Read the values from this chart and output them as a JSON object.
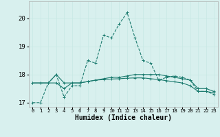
{
  "title": "",
  "xlabel": "Humidex (Indice chaleur)",
  "ylabel": "",
  "bg_color": "#d8f0ee",
  "grid_color": "#c8e8e4",
  "line_color": "#1a7a6e",
  "xlim": [
    -0.5,
    23.5
  ],
  "ylim": [
    16.85,
    20.6
  ],
  "yticks": [
    17,
    18,
    19,
    20
  ],
  "xticks": [
    0,
    1,
    2,
    3,
    4,
    5,
    6,
    7,
    8,
    9,
    10,
    11,
    12,
    13,
    14,
    15,
    16,
    17,
    18,
    19,
    20,
    21,
    22,
    23
  ],
  "series": [
    [
      17.0,
      17.0,
      17.7,
      18.0,
      17.2,
      17.6,
      17.6,
      18.5,
      18.4,
      19.4,
      19.3,
      19.8,
      20.2,
      19.3,
      18.5,
      18.4,
      17.8,
      17.9,
      17.95,
      17.9,
      17.8,
      17.4,
      17.4,
      17.3
    ],
    [
      17.7,
      17.7,
      17.7,
      18.0,
      17.7,
      17.7,
      17.7,
      17.75,
      17.8,
      17.85,
      17.9,
      17.9,
      17.95,
      18.0,
      18.0,
      18.0,
      18.0,
      17.95,
      17.9,
      17.85,
      17.8,
      17.5,
      17.5,
      17.4
    ],
    [
      17.7,
      17.7,
      17.7,
      17.7,
      17.5,
      17.7,
      17.7,
      17.75,
      17.8,
      17.82,
      17.84,
      17.85,
      17.87,
      17.88,
      17.88,
      17.85,
      17.82,
      17.78,
      17.74,
      17.7,
      17.6,
      17.4,
      17.4,
      17.35
    ]
  ],
  "line_styles": [
    "--",
    "-",
    "-"
  ],
  "marker_sizes": [
    3,
    3,
    3
  ]
}
